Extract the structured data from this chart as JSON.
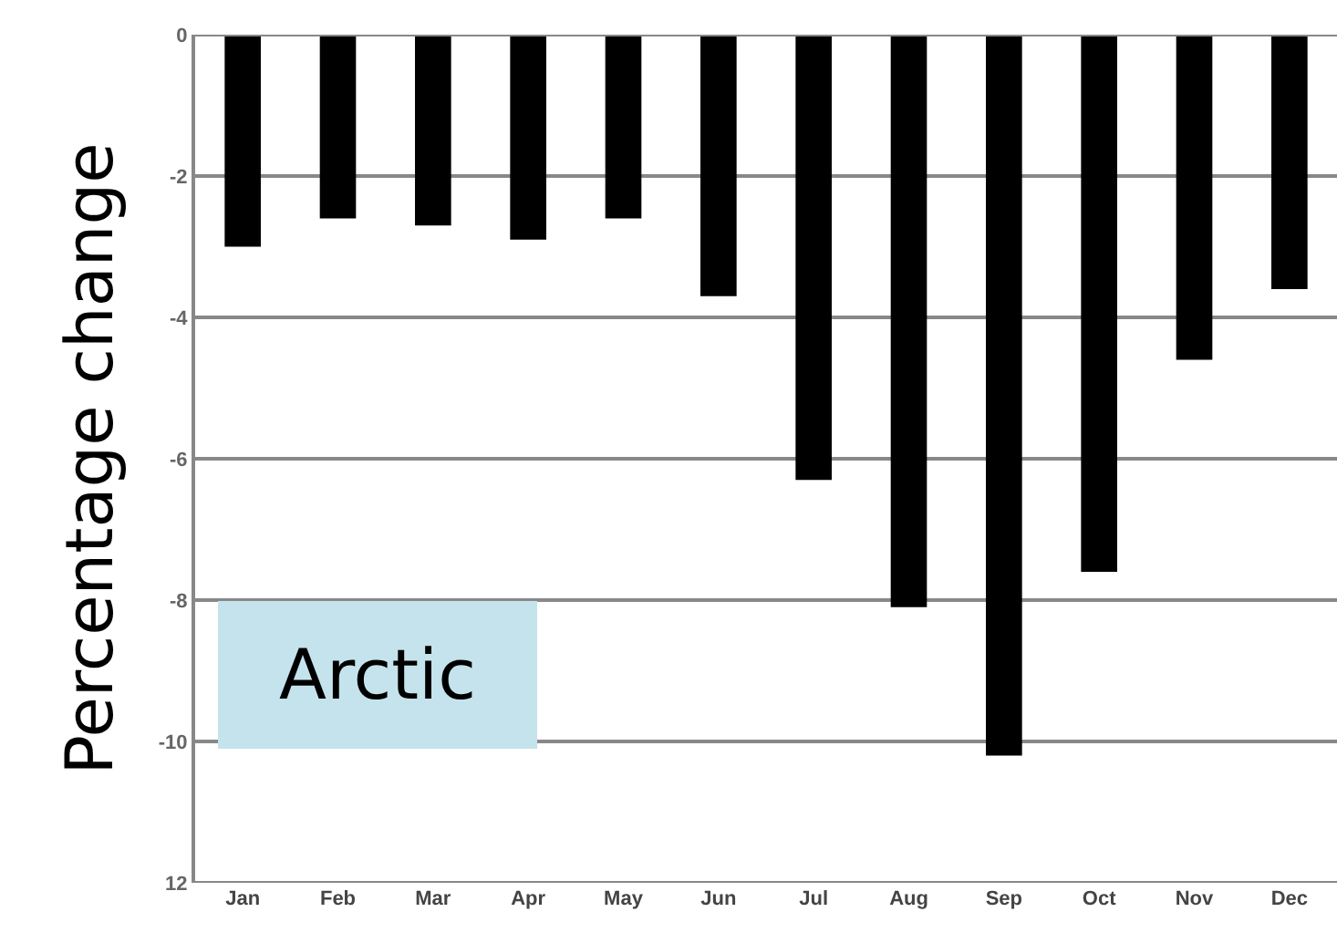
{
  "chart_data": {
    "type": "bar",
    "ylabel": "Percentage change",
    "categories": [
      "Jan",
      "Feb",
      "Mar",
      "Apr",
      "May",
      "Jun",
      "Jul",
      "Aug",
      "Sep",
      "Oct",
      "Nov",
      "Dec"
    ],
    "values": [
      -3.0,
      -2.6,
      -2.7,
      -2.9,
      -2.6,
      -3.7,
      -6.3,
      -8.1,
      -10.2,
      -7.6,
      -4.6,
      -3.6
    ],
    "color": "#000000",
    "ylim": [
      -12,
      0
    ],
    "yticks": [
      0,
      -2,
      -4,
      -6,
      -8,
      -10,
      {
        "value": -12,
        "label": "12"
      }
    ],
    "grid": "y",
    "annotations": [
      "Arctic"
    ]
  }
}
